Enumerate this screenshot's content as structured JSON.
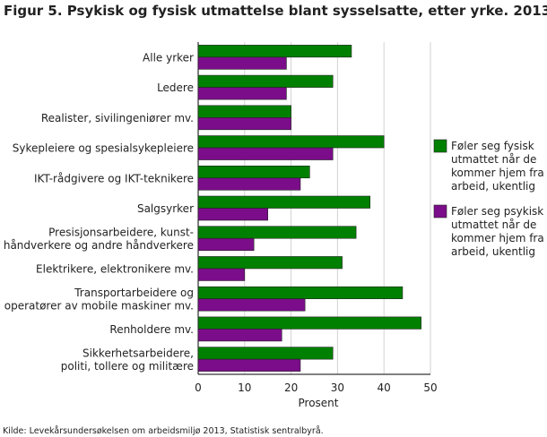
{
  "chart_data": {
    "type": "bar",
    "orientation": "horizontal",
    "title": "Figur 5. Psykisk og fysisk utmattelse blant sysselsatte, etter yrke. 2013",
    "xlabel": "Prosent",
    "xlim": [
      0,
      50
    ],
    "xticks": [
      0,
      10,
      20,
      30,
      40,
      50
    ],
    "grid": "vertical",
    "legend_position": "right",
    "categories": [
      [
        "Alle yrker"
      ],
      [
        "Ledere"
      ],
      [
        "Realister, sivilingeniører mv."
      ],
      [
        "Sykepleiere og spesialsykepleiere"
      ],
      [
        "IKT-rådgivere og IKT-teknikere"
      ],
      [
        "Salgsyrker"
      ],
      [
        "Presisjonsarbeidere, kunst-",
        "håndverkere og andre håndverkere"
      ],
      [
        "Elektrikere, elektronikere mv."
      ],
      [
        "Transportarbeidere og",
        "operatører av mobile maskiner mv."
      ],
      [
        "Renholdere mv."
      ],
      [
        "Sikkerhetsarbeidere,",
        "politi, tollere og militære"
      ]
    ],
    "series": [
      {
        "name": [
          "Føler seg fysisk",
          "utmattet når de",
          "kommer hjem fra",
          "arbeid, ukentlig"
        ],
        "color": "#008000",
        "values": [
          33,
          29,
          20,
          40,
          24,
          37,
          34,
          31,
          44,
          48,
          29
        ]
      },
      {
        "name": [
          "Føler seg psykisk",
          "utmattet når de",
          "kommer hjem fra",
          "arbeid, ukentlig"
        ],
        "color": "#7b0d8a",
        "values": [
          19,
          19,
          20,
          29,
          22,
          15,
          12,
          10,
          23,
          18,
          22
        ]
      }
    ],
    "source": "Kilde: Levekårsundersøkelsen om arbeidsmiljø 2013, Statistisk sentralbyrå."
  }
}
